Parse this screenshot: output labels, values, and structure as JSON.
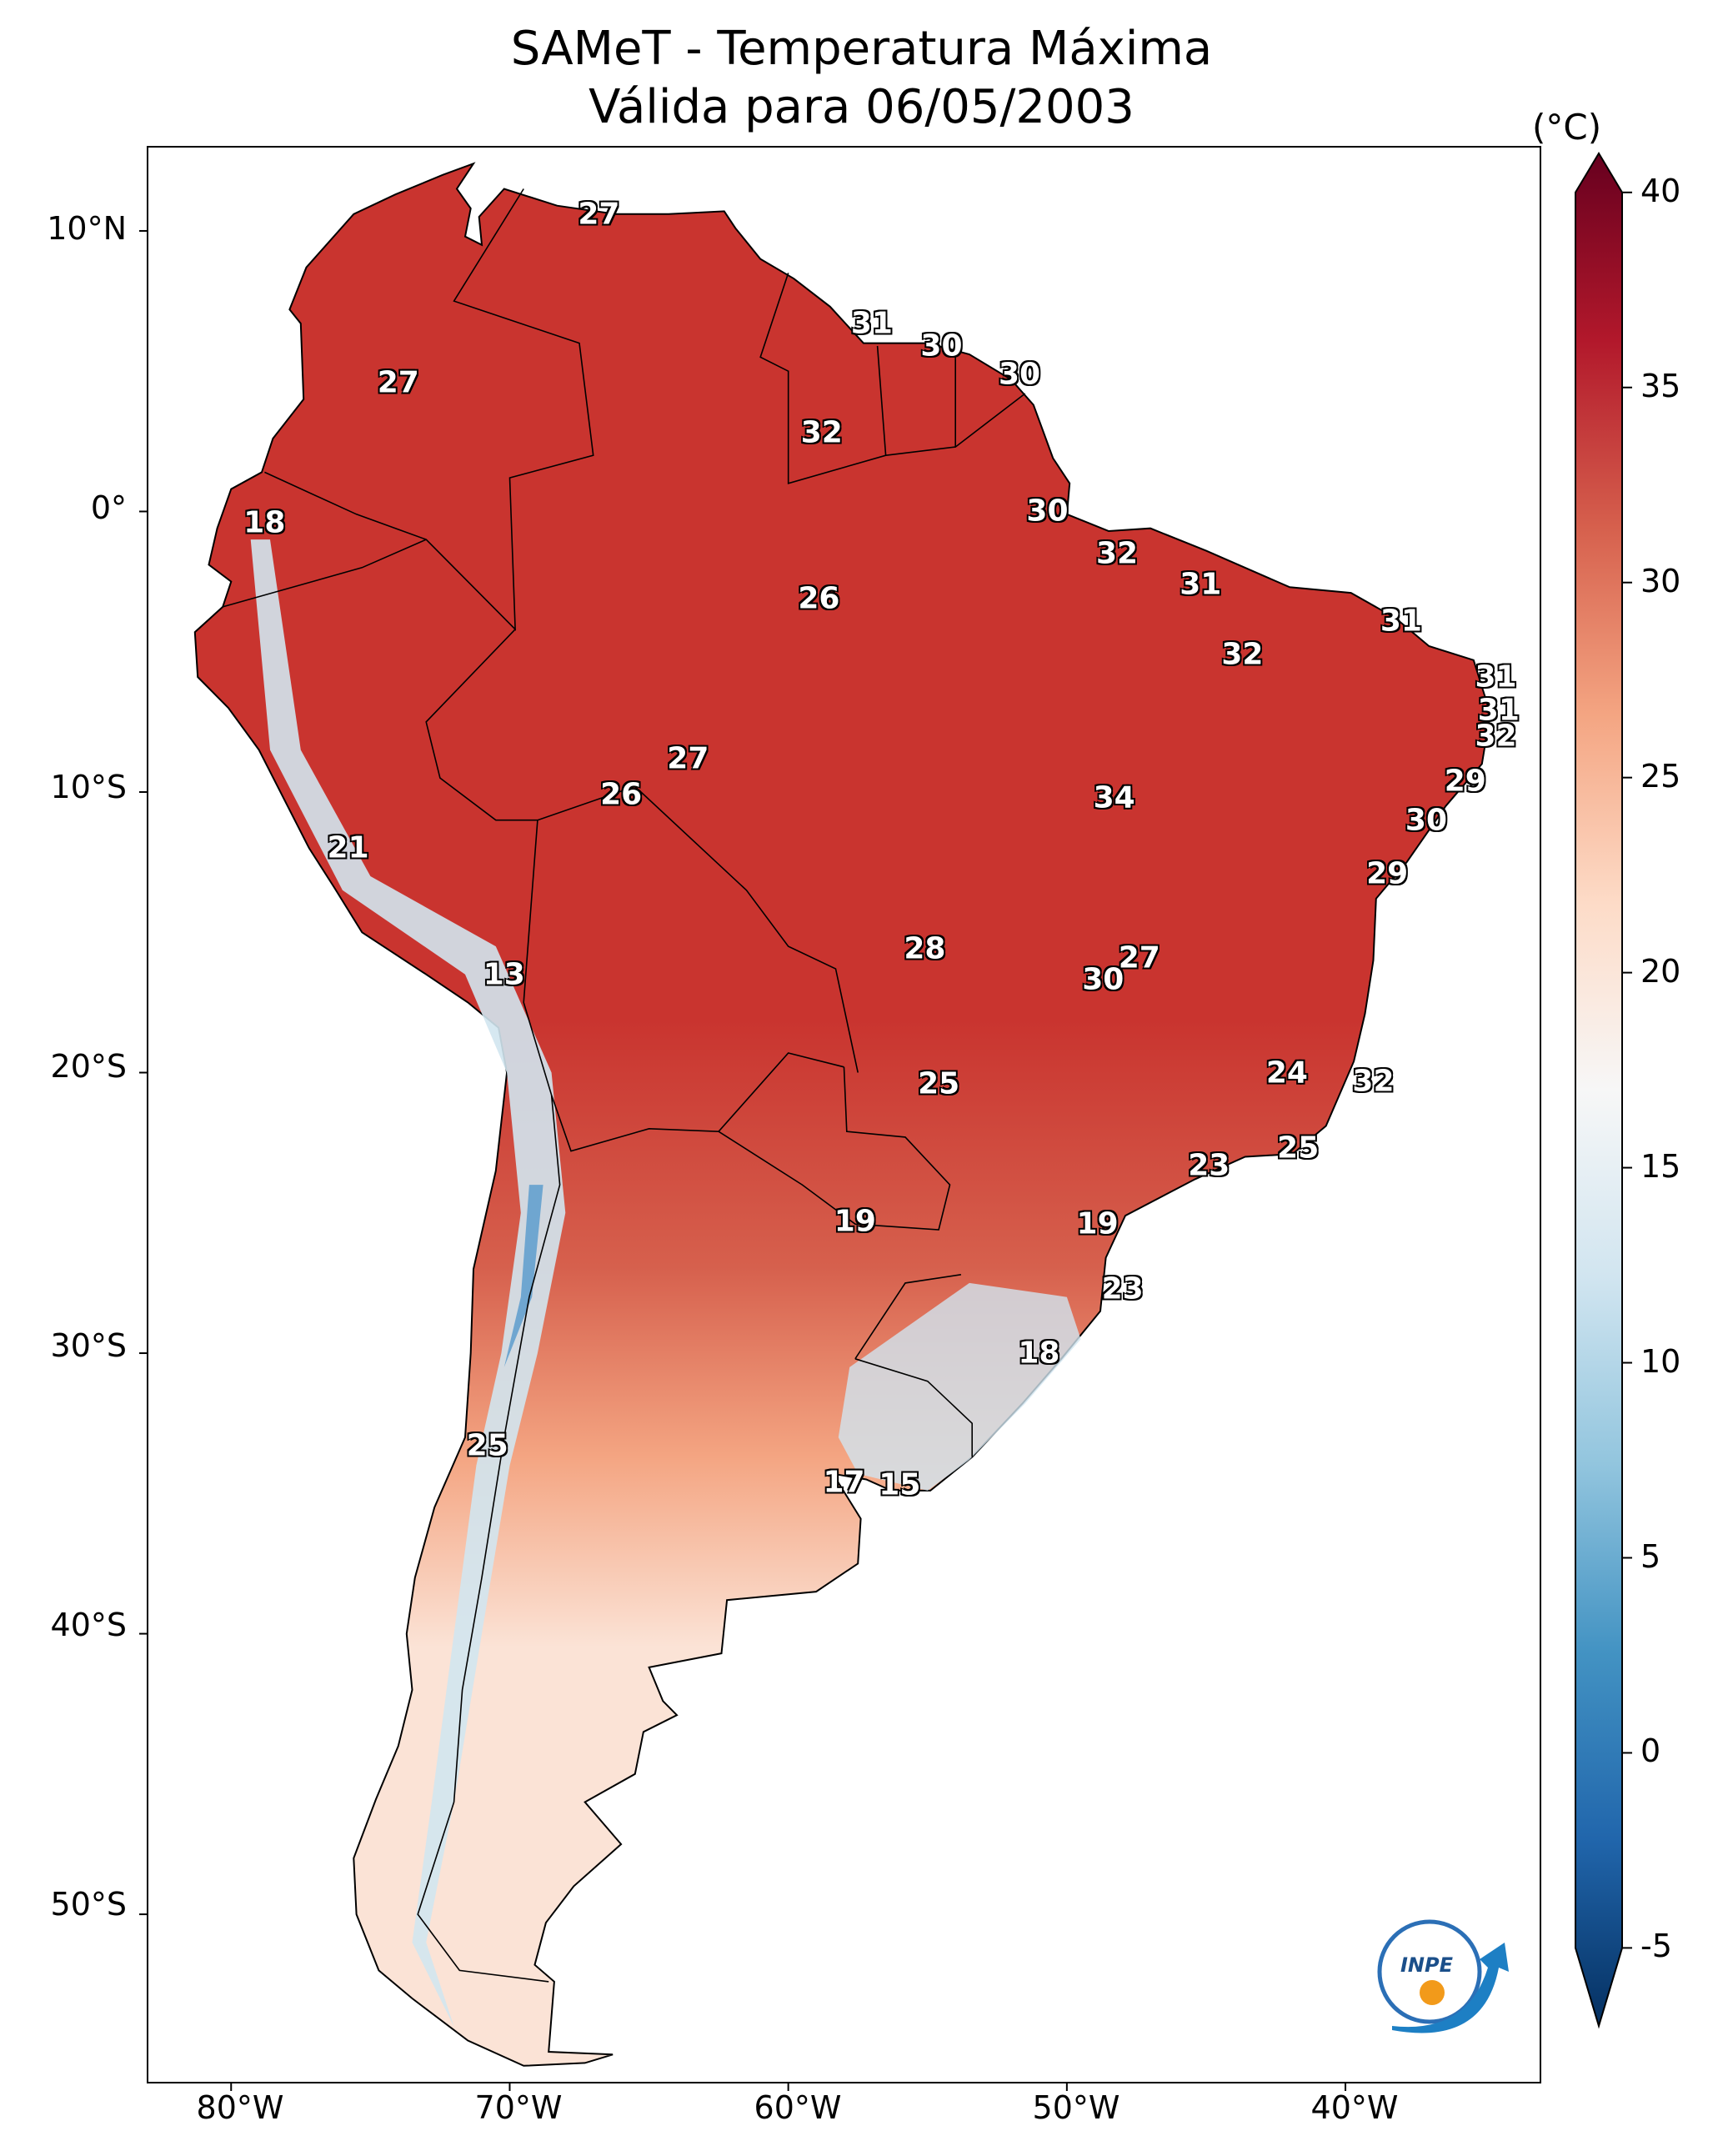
{
  "title": {
    "line1": "SAMeT - Temperatura Máxima",
    "line2": "Válida para 06/05/2003"
  },
  "latitude_labels": [
    "10°N",
    "0°",
    "10°S",
    "20°S",
    "30°S",
    "40°S",
    "50°S"
  ],
  "longitude_labels": [
    "80°W",
    "70°W",
    "60°W",
    "50°W",
    "40°W"
  ],
  "colorbar": {
    "unit": "(°C)",
    "ticks": [
      "40",
      "35",
      "30",
      "25",
      "20",
      "15",
      "10",
      "5",
      "0",
      "-5"
    ],
    "range": [
      -7,
      41
    ],
    "colors": [
      "#053061",
      "#2166ac",
      "#4393c3",
      "#92c5de",
      "#d1e5f0",
      "#f7f7f7",
      "#fddbc7",
      "#f4a582",
      "#d6604d",
      "#b2182b",
      "#67001f"
    ]
  },
  "map": {
    "extent": {
      "lon": [
        -83,
        -33
      ],
      "lat": [
        -56,
        13
      ]
    },
    "land_colors": {
      "hot": "#c9342f",
      "warm": "#d6604d",
      "mild": "#f4a582",
      "cool": "#fbe3d6",
      "cold": "#d1e5f0",
      "andes": "#6fa6d0"
    }
  },
  "station_values": [
    {
      "value": "27",
      "lon": -66.8,
      "lat": 10.6
    },
    {
      "value": "27",
      "lon": -74.0,
      "lat": 4.6
    },
    {
      "value": "31",
      "lon": -57.0,
      "lat": 6.7
    },
    {
      "value": "30",
      "lon": -54.5,
      "lat": 5.9
    },
    {
      "value": "30",
      "lon": -51.7,
      "lat": 4.9
    },
    {
      "value": "32",
      "lon": -58.8,
      "lat": 2.8
    },
    {
      "value": "18",
      "lon": -78.8,
      "lat": -0.4
    },
    {
      "value": "30",
      "lon": -50.7,
      "lat": 0.0
    },
    {
      "value": "32",
      "lon": -48.2,
      "lat": -1.5
    },
    {
      "value": "26",
      "lon": -58.9,
      "lat": -3.1
    },
    {
      "value": "31",
      "lon": -45.2,
      "lat": -2.6
    },
    {
      "value": "31",
      "lon": -38.0,
      "lat": -3.9
    },
    {
      "value": "32",
      "lon": -43.7,
      "lat": -5.1
    },
    {
      "value": "31",
      "lon": -34.6,
      "lat": -5.9
    },
    {
      "value": "31",
      "lon": -34.5,
      "lat": -7.1
    },
    {
      "value": "32",
      "lon": -34.6,
      "lat": -8.0
    },
    {
      "value": "27",
      "lon": -63.6,
      "lat": -8.8
    },
    {
      "value": "26",
      "lon": -66.0,
      "lat": -10.1
    },
    {
      "value": "34",
      "lon": -48.3,
      "lat": -10.2
    },
    {
      "value": "29",
      "lon": -35.7,
      "lat": -9.6
    },
    {
      "value": "30",
      "lon": -37.1,
      "lat": -11.0
    },
    {
      "value": "21",
      "lon": -75.8,
      "lat": -12.0
    },
    {
      "value": "29",
      "lon": -38.5,
      "lat": -12.9
    },
    {
      "value": "28",
      "lon": -55.1,
      "lat": -15.6
    },
    {
      "value": "27",
      "lon": -47.4,
      "lat": -15.9
    },
    {
      "value": "30",
      "lon": -48.7,
      "lat": -16.7
    },
    {
      "value": "13",
      "lon": -70.2,
      "lat": -16.5
    },
    {
      "value": "24",
      "lon": -42.1,
      "lat": -20.0
    },
    {
      "value": "25",
      "lon": -54.6,
      "lat": -20.4
    },
    {
      "value": "32",
      "lon": -39.0,
      "lat": -20.3
    },
    {
      "value": "25",
      "lon": -41.7,
      "lat": -22.7
    },
    {
      "value": "23",
      "lon": -44.9,
      "lat": -23.3
    },
    {
      "value": "19",
      "lon": -57.6,
      "lat": -25.3
    },
    {
      "value": "19",
      "lon": -48.9,
      "lat": -25.4
    },
    {
      "value": "23",
      "lon": -48.0,
      "lat": -27.7
    },
    {
      "value": "18",
      "lon": -51.0,
      "lat": -30.0
    },
    {
      "value": "25",
      "lon": -70.8,
      "lat": -33.3
    },
    {
      "value": "17",
      "lon": -58.0,
      "lat": -34.6
    },
    {
      "value": "15",
      "lon": -56.0,
      "lat": -34.7
    }
  ]
}
